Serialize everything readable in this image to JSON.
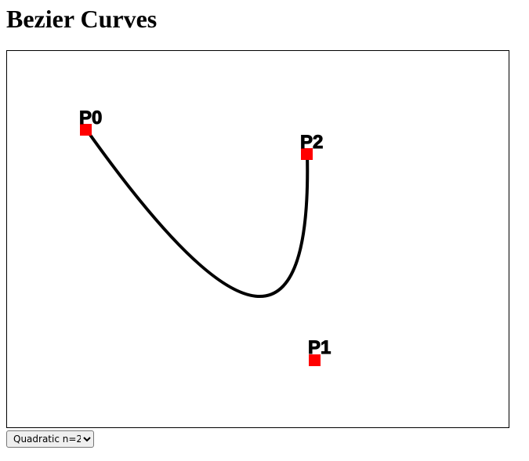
{
  "page": {
    "title": "Bezier Curves"
  },
  "canvas": {
    "curve_color": "#000000",
    "point_color": "#ff0000",
    "control_points": [
      {
        "label": "P0"
      },
      {
        "label": "P1"
      },
      {
        "label": "P2"
      }
    ]
  },
  "mode_select": {
    "selected": "Quadratic n=2",
    "options": [
      "Quadratic n=2"
    ]
  }
}
